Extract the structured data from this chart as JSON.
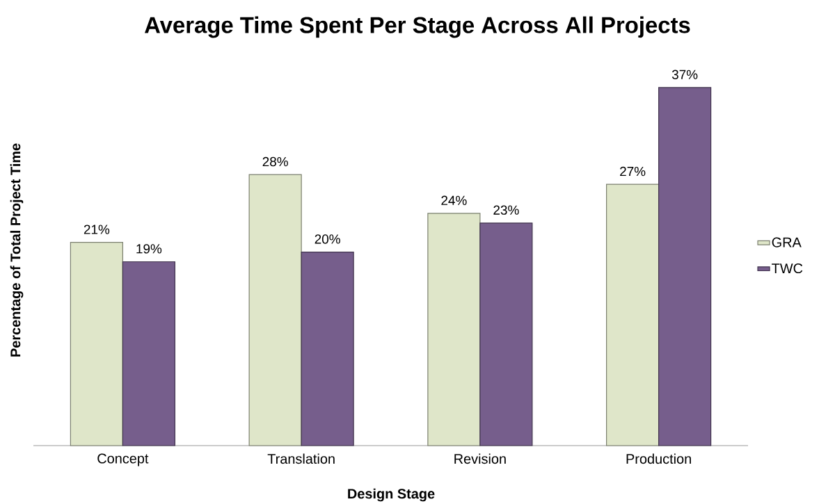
{
  "chart_data": {
    "type": "bar",
    "title": "Average Time Spent Per Stage Across All Projects",
    "xlabel": "Design Stage",
    "ylabel": "Percentage of Total Project Time",
    "categories": [
      "Concept",
      "Translation",
      "Revision",
      "Production"
    ],
    "series": [
      {
        "name": "GRA",
        "color": "#dfe6c9",
        "values": [
          21,
          28,
          24,
          27
        ],
        "value_labels": [
          "21%",
          "28%",
          "24%",
          "27%"
        ]
      },
      {
        "name": "TWC",
        "color": "#765e8c",
        "values": [
          19,
          20,
          23,
          37
        ],
        "value_labels": [
          "19%",
          "20%",
          "23%",
          "37%"
        ]
      }
    ],
    "legend": "right"
  }
}
